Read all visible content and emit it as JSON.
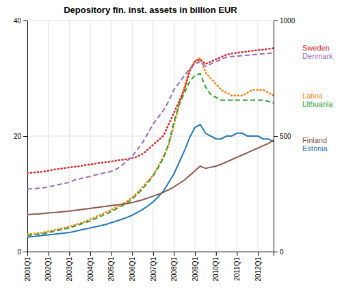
{
  "chart_data": {
    "type": "line",
    "title": "Depository fin. inst. assets in billion EUR",
    "categories": [
      "2001Q1",
      null,
      null,
      null,
      "2002Q1",
      null,
      null,
      null,
      "2003Q1",
      null,
      null,
      null,
      "2004Q1",
      null,
      null,
      null,
      "2005Q1",
      null,
      null,
      null,
      "2006Q1",
      null,
      null,
      null,
      "2007Q1",
      null,
      null,
      null,
      "2008Q1",
      null,
      null,
      null,
      "2009Q1",
      null,
      null,
      null,
      "2010Q1",
      null,
      null,
      null,
      "2011Q1",
      null,
      null,
      null,
      "2012Q1",
      null,
      null,
      null
    ],
    "series": [
      {
        "name": "Estonia",
        "line_style": "solid",
        "values": [
          2.5,
          2.6,
          2.7,
          2.8,
          2.9,
          3.0,
          3.1,
          3.2,
          3.3,
          3.5,
          3.7,
          3.9,
          4.1,
          4.3,
          4.5,
          4.7,
          5.0,
          5.3,
          5.6,
          5.9,
          6.3,
          6.8,
          7.3,
          7.9,
          8.6,
          9.5,
          10.5,
          12.0,
          13.5,
          15.5,
          17.5,
          19.8,
          21.5,
          22.0,
          20.5,
          20.0,
          19.5,
          19.5,
          20.0,
          20.0,
          20.5,
          20.5,
          20.0,
          20.0,
          20.0,
          19.5,
          19.5,
          19.0
        ]
      },
      {
        "name": "Latvia",
        "line_style": "dotted",
        "values": [
          3.0,
          3.1,
          3.2,
          3.3,
          3.5,
          3.7,
          3.9,
          4.1,
          4.3,
          4.6,
          4.9,
          5.2,
          5.6,
          6.0,
          6.4,
          6.8,
          7.2,
          7.7,
          8.2,
          8.7,
          9.4,
          10.2,
          11.2,
          12.2,
          13.2,
          14.8,
          16.5,
          18.5,
          22,
          25.5,
          28.5,
          31.5,
          33,
          33.5,
          31,
          30,
          29,
          28,
          27.5,
          27,
          27,
          27,
          27.5,
          28,
          28,
          28,
          27.5,
          27
        ]
      },
      {
        "name": "Lithuania",
        "line_style": "dashed",
        "values": [
          2.8,
          2.9,
          3.0,
          3.1,
          3.3,
          3.5,
          3.7,
          3.9,
          4.1,
          4.4,
          4.7,
          5.0,
          5.3,
          5.7,
          6.1,
          6.5,
          6.9,
          7.4,
          7.9,
          8.4,
          9.1,
          9.9,
          10.9,
          11.9,
          13.1,
          14.6,
          16.2,
          18.8,
          22.5,
          25.5,
          27.5,
          29.5,
          30.5,
          30.8,
          28.5,
          27.2,
          26.7,
          26.2,
          26.2,
          26.2,
          26.2,
          26.2,
          26.2,
          26.2,
          26.2,
          26.2,
          26.0,
          25.7
        ]
      },
      {
        "name": "Sweden",
        "line_style": "dotted",
        "axis": "y2",
        "values": [
          340,
          342,
          344,
          346,
          350,
          355,
          358,
          361,
          364,
          367,
          370,
          374,
          377,
          381,
          384,
          387,
          390,
          394,
          397,
          400,
          404,
          412,
          422,
          442,
          462,
          482,
          502,
          552,
          602,
          652,
          702,
          782,
          822,
          832,
          812,
          822,
          832,
          842,
          852,
          857,
          860,
          863,
          866,
          869,
          872,
          874,
          877,
          880
        ]
      },
      {
        "name": "Denmark",
        "line_style": "dashed",
        "axis": "y2",
        "values": [
          270,
          272,
          274,
          276,
          280,
          285,
          290,
          295,
          300,
          310,
          315,
          320,
          325,
          332,
          337,
          342,
          347,
          357,
          372,
          392,
          412,
          442,
          472,
          512,
          552,
          582,
          612,
          652,
          702,
          732,
          762,
          792,
          812,
          822,
          802,
          812,
          822,
          832,
          842,
          844,
          846,
          848,
          850,
          852,
          854,
          856,
          858,
          860
        ]
      },
      {
        "name": "Finland",
        "line_style": "solid",
        "axis": "y2",
        "values": [
          160,
          162,
          163,
          165,
          167,
          169,
          171,
          173,
          175,
          178,
          181,
          184,
          187,
          190,
          193,
          196,
          199,
          202,
          205,
          208,
          212,
          218,
          224,
          232,
          240,
          248,
          257,
          268,
          280,
          295,
          310,
          330,
          350,
          370,
          360,
          365,
          370,
          378,
          388,
          398,
          408,
          418,
          428,
          438,
          448,
          458,
          468,
          482
        ]
      }
    ],
    "ylim": [
      0,
      40
    ],
    "yticks": [
      0,
      20,
      40
    ],
    "y2lim": [
      0,
      1000
    ],
    "y2ticks": [
      0,
      500,
      1000
    ],
    "grid": true
  }
}
